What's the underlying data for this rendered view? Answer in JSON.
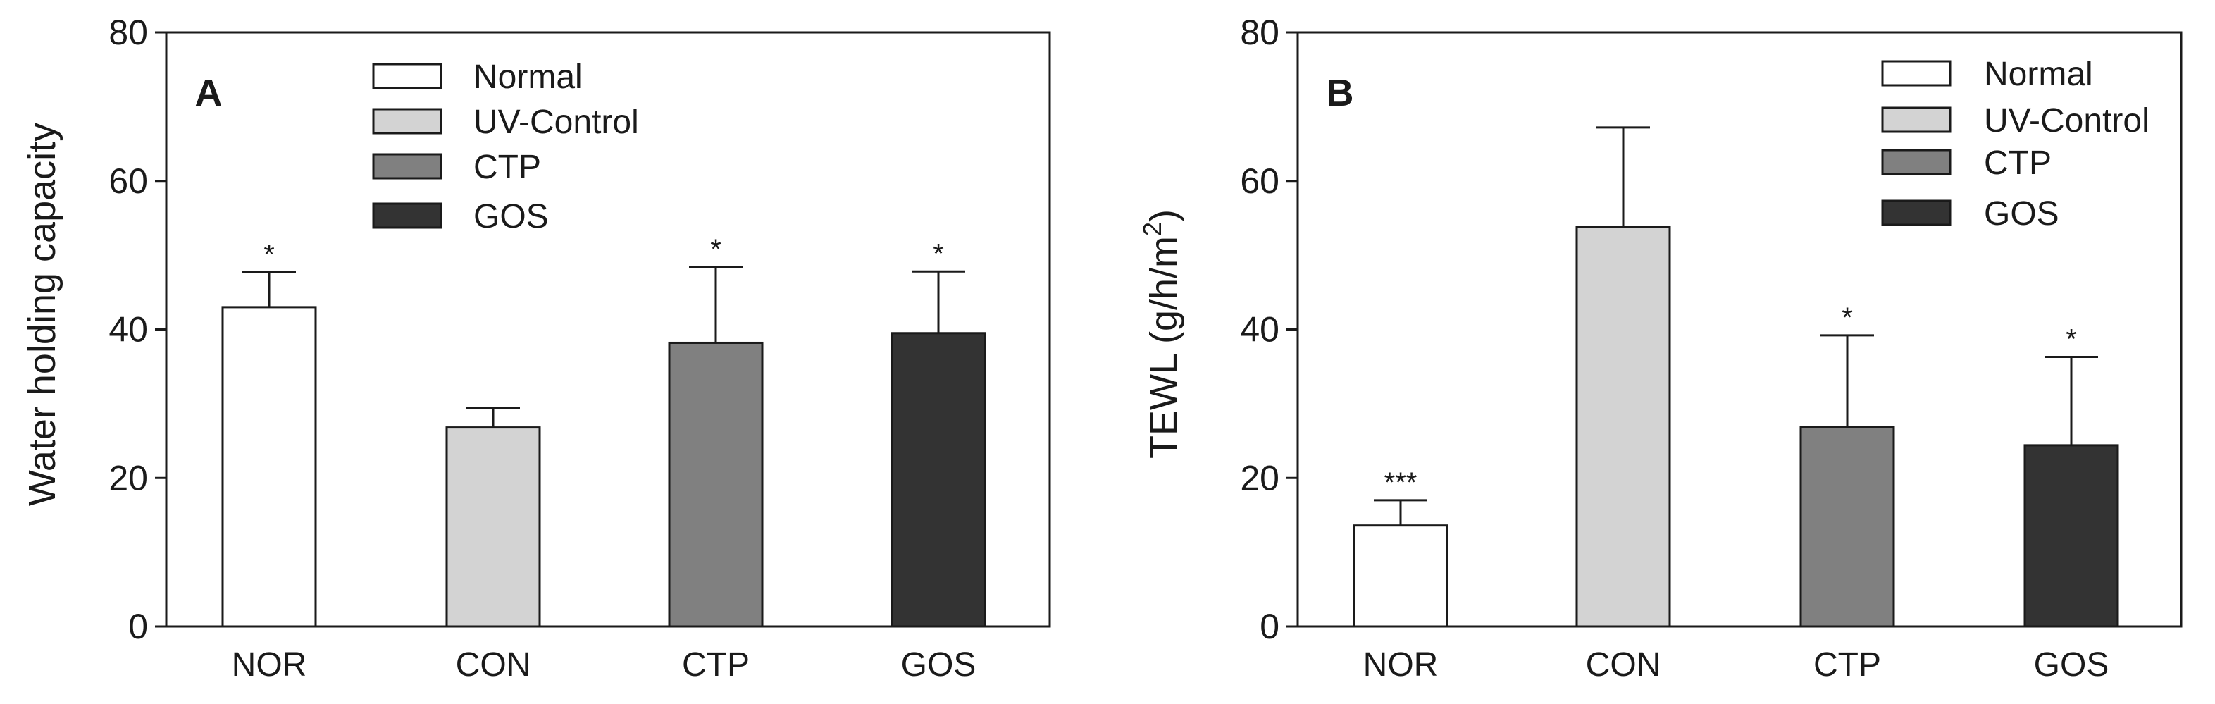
{
  "chart_data": [
    {
      "type": "bar",
      "panel_label": "A",
      "ylabel": "Water holding capacity",
      "xlabel": "",
      "ylim": [
        0,
        80
      ],
      "yticks": [
        0,
        20,
        40,
        60,
        80
      ],
      "categories": [
        "NOR",
        "CON",
        "CTP",
        "GOS"
      ],
      "values": [
        43,
        26.8,
        38.2,
        39.5
      ],
      "errors": [
        4.7,
        2.6,
        10.2,
        8.3
      ],
      "significance": [
        "*",
        "",
        "*",
        "*"
      ],
      "bar_colors": [
        "#ffffff",
        "#d3d3d3",
        "#808080",
        "#333333"
      ],
      "legend": {
        "position": "top",
        "entries": [
          {
            "label": "Normal",
            "color": "#ffffff"
          },
          {
            "label": "UV-Control",
            "color": "#d3d3d3"
          },
          {
            "label": "CTP",
            "color": "#808080"
          },
          {
            "label": "GOS",
            "color": "#333333"
          }
        ]
      },
      "grid": false
    },
    {
      "type": "bar",
      "panel_label": "B",
      "ylabel": "TEWL (g/h/m",
      "ylabel_superscript": "2",
      "ylabel_suffix": ")",
      "xlabel": "",
      "ylim": [
        0,
        80
      ],
      "yticks": [
        0,
        20,
        40,
        60,
        80
      ],
      "categories": [
        "NOR",
        "CON",
        "CTP",
        "GOS"
      ],
      "values": [
        13.6,
        53.8,
        26.9,
        24.4
      ],
      "errors": [
        3.4,
        13.4,
        12.3,
        11.9
      ],
      "significance": [
        "***",
        "",
        "*",
        "*"
      ],
      "bar_colors": [
        "#ffffff",
        "#d3d3d3",
        "#808080",
        "#333333"
      ],
      "legend": {
        "position": "top-right",
        "entries": [
          {
            "label": "Normal",
            "color": "#ffffff"
          },
          {
            "label": "UV-Control",
            "color": "#d3d3d3"
          },
          {
            "label": "CTP",
            "color": "#808080"
          },
          {
            "label": "GOS",
            "color": "#333333"
          }
        ]
      },
      "grid": false
    }
  ]
}
